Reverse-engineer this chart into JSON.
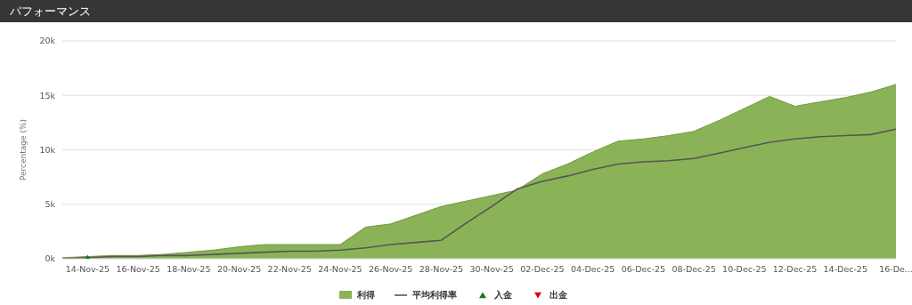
{
  "chart_data": {
    "type": "area",
    "title": "パフォーマンス",
    "ylabel": "Percentage (%)",
    "categories": [
      null,
      "14-Nov-25",
      null,
      "16-Nov-25",
      null,
      "18-Nov-25",
      null,
      "20-Nov-25",
      null,
      "22-Nov-25",
      null,
      "24-Nov-25",
      null,
      "26-Nov-25",
      null,
      "28-Nov-25",
      null,
      "30-Nov-25",
      null,
      "02-Dec-25",
      null,
      "04-Dec-25",
      null,
      "06-Dec-25",
      null,
      "08-Dec-25",
      null,
      "10-Dec-25",
      null,
      "12-Dec-25",
      null,
      "14-Dec-25",
      null,
      "16-De..."
    ],
    "series": [
      {
        "name": "利得",
        "color": "#8ab358",
        "values": [
          100,
          200,
          300,
          300,
          400,
          600,
          800,
          1100,
          1300,
          1300,
          1300,
          1300,
          2900,
          3200,
          4000,
          4800,
          5300,
          5800,
          6300,
          7800,
          8700,
          9800,
          10800,
          11000,
          11300,
          11700,
          12700,
          13800,
          14900,
          14000,
          14400,
          14800,
          15300,
          16000
        ]
      },
      {
        "name": "平均利得率",
        "type": "line",
        "color": "#555555",
        "values": [
          0,
          100,
          200,
          200,
          300,
          300,
          400,
          500,
          600,
          700,
          700,
          800,
          1000,
          1300,
          1500,
          1700,
          3300,
          4800,
          6400,
          7100,
          7600,
          8200,
          8700,
          8900,
          9000,
          9200,
          9700,
          10200,
          10700,
          11000,
          11200,
          11300,
          11400,
          11900
        ]
      },
      {
        "name": "入金",
        "type": "scatter",
        "marker": "triangle",
        "color": "#1a7a1a",
        "values": [
          null,
          0,
          null,
          null,
          null,
          null,
          null,
          null,
          null,
          null,
          null,
          null,
          null,
          null,
          null,
          null,
          null,
          null,
          null,
          null,
          null,
          null,
          null,
          null,
          null,
          null,
          null,
          null,
          null,
          null,
          null,
          null,
          null,
          null
        ]
      },
      {
        "name": "出金",
        "type": "scatter",
        "marker": "triangle",
        "color": "#e00000",
        "values": [
          null,
          null,
          null,
          null,
          null,
          null,
          null,
          null,
          null,
          null,
          null,
          null,
          null,
          null,
          null,
          null,
          null,
          null,
          null,
          null,
          null,
          null,
          null,
          null,
          null,
          null,
          null,
          null,
          null,
          null,
          null,
          null,
          null,
          null
        ]
      }
    ],
    "ylim": [
      0,
      20000
    ],
    "yticks": [
      {
        "value": 0,
        "label": "0k"
      },
      {
        "value": 5000,
        "label": "5k"
      },
      {
        "value": 10000,
        "label": "10k"
      },
      {
        "value": 15000,
        "label": "15k"
      },
      {
        "value": 20000,
        "label": "20k"
      }
    ],
    "grid": "y",
    "legend": "bottom"
  }
}
